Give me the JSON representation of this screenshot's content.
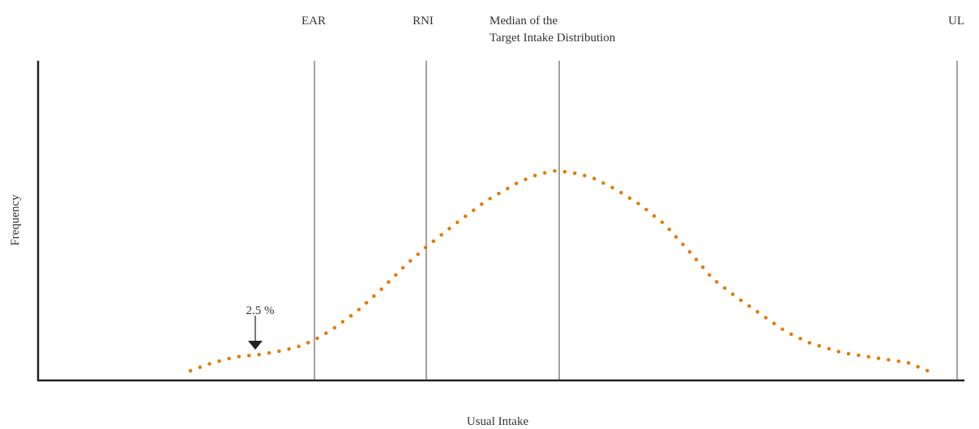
{
  "reference_lines": {
    "ear": "EAR",
    "rni": "RNI",
    "median": [
      "Median of the",
      "Target Intake Distribution"
    ],
    "ul": "UL"
  },
  "annotation": "2.5 %",
  "x_axis_label": "Usual Intake",
  "y_axis_label": "Frequency"
}
